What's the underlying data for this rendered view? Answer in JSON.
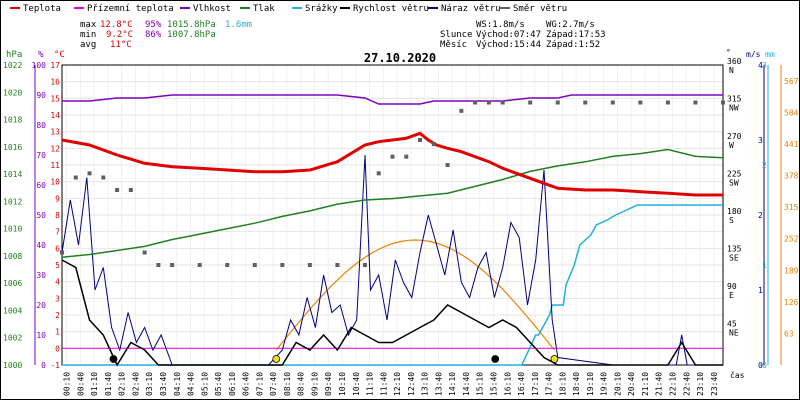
{
  "chart_data": {
    "type": "line",
    "title": "27.10.2020",
    "legend": [
      {
        "key": "teplota",
        "name": "Teplota",
        "color": "#e00000"
      },
      {
        "key": "prizemni",
        "name": "Přízemní teplota",
        "color": "#e000e0"
      },
      {
        "key": "vlhkost",
        "name": "Vlhkost",
        "color": "#8000c0"
      },
      {
        "key": "tlak",
        "name": "Tlak",
        "color": "#208020"
      },
      {
        "key": "srazky",
        "name": "Srážky",
        "color": "#20b0e0"
      },
      {
        "key": "rychlost",
        "name": "Rychlost větru",
        "color": "#000000"
      },
      {
        "key": "naraz",
        "name": "Náraz větru",
        "color": "#000080"
      },
      {
        "key": "smer",
        "name": "Směr větru",
        "color": "#606060"
      }
    ],
    "stats": {
      "max": {
        "label": "max",
        "temp": "12.8°C",
        "hum": "95%",
        "press": "1015.8hPa",
        "rain": "1.6mm"
      },
      "min": {
        "label": "min",
        "temp": "9.2°C",
        "hum": "86%",
        "press": "1007.8hPa"
      },
      "avg": {
        "label": "avg",
        "temp": "11°C"
      }
    },
    "info": {
      "ws": "WS:1.8m/s",
      "wg": "WG:2.7m/s",
      "sun_label": "Slunce",
      "sun_rise": "Východ:07:47",
      "sun_set": "Západ:17:53",
      "moon_label": "Měsíc",
      "moon_rise": "Východ:15:44",
      "moon_set": "Západ:1:52"
    },
    "axes": {
      "hpa": {
        "label": "hPa",
        "ticks": [
          "1000",
          "1002",
          "1004",
          "1006",
          "1008",
          "1010",
          "1012",
          "1014",
          "1016",
          "1018",
          "1020",
          "1022"
        ]
      },
      "pct": {
        "label": "%",
        "ticks": [
          "0",
          "10",
          "20",
          "30",
          "40",
          "50",
          "60",
          "70",
          "80",
          "90",
          "100"
        ]
      },
      "temp": {
        "label": "°C",
        "ticks": [
          "-1",
          "0",
          "1",
          "2",
          "3",
          "4",
          "5",
          "6",
          "7",
          "8",
          "9",
          "10",
          "11",
          "12",
          "13",
          "14",
          "15",
          "16",
          "17"
        ]
      },
      "dir": {
        "label": "°",
        "ticks": [
          {
            "v": "45",
            "c": "NE"
          },
          {
            "v": "90",
            "c": "E"
          },
          {
            "v": "135",
            "c": "SE"
          },
          {
            "v": "180",
            "c": "S"
          },
          {
            "v": "225",
            "c": "SW"
          },
          {
            "v": "270",
            "c": "W"
          },
          {
            "v": "315",
            "c": "NW"
          },
          {
            "v": "360",
            "c": "N"
          }
        ]
      },
      "ms": {
        "label": "m/s",
        "ticks": [
          "0",
          "1",
          "2",
          "3",
          "4"
        ]
      },
      "mm": {
        "label": "mm",
        "ticks": [
          "0",
          "1",
          "2",
          "3"
        ]
      },
      "rainmm": {
        "ticks": [
          "63",
          "126",
          "189",
          "252",
          "315",
          "378",
          "441",
          "504",
          "567"
        ]
      },
      "time_label": "čas",
      "x_ticks": [
        "00:10",
        "00:40",
        "01:10",
        "01:40",
        "02:10",
        "02:40",
        "03:10",
        "03:40",
        "04:10",
        "04:40",
        "05:10",
        "05:40",
        "06:10",
        "06:40",
        "07:10",
        "07:40",
        "08:10",
        "08:40",
        "09:10",
        "09:40",
        "10:10",
        "10:40",
        "11:10",
        "11:40",
        "12:10",
        "12:40",
        "13:10",
        "13:40",
        "14:10",
        "14:40",
        "15:10",
        "15:40",
        "16:10",
        "16:40",
        "17:10",
        "17:40",
        "18:10",
        "18:40",
        "19:10",
        "19:40",
        "20:10",
        "20:40",
        "21:10",
        "21:40",
        "22:10",
        "22:40",
        "23:10",
        "23:40"
      ]
    },
    "series": {
      "teplota": {
        "x": [
          0,
          1,
          2,
          3,
          4,
          5,
          6,
          7,
          8,
          9,
          10,
          11,
          11.5,
          12,
          12.5,
          13,
          13.3,
          13.6,
          14,
          14.5,
          15,
          15.5,
          16,
          16.5,
          17,
          17.5,
          18,
          19,
          20,
          21,
          22,
          23,
          24
        ],
        "y": [
          12.5,
          12.2,
          11.6,
          11.1,
          10.9,
          10.8,
          10.7,
          10.6,
          10.6,
          10.7,
          11.2,
          12.2,
          12.4,
          12.5,
          12.6,
          12.9,
          12.5,
          12.2,
          12,
          11.8,
          11.5,
          11.2,
          10.8,
          10.5,
          10.2,
          9.9,
          9.6,
          9.5,
          9.5,
          9.4,
          9.3,
          9.2,
          9.2
        ]
      },
      "prizemni": {
        "x": [
          0,
          24
        ],
        "y": [
          0,
          0
        ]
      },
      "vlhkost": {
        "x": [
          0,
          1,
          2,
          3,
          4,
          5,
          6,
          7,
          8,
          9,
          10,
          11,
          11.5,
          12,
          12.5,
          13,
          13.5,
          14,
          15,
          16,
          17,
          18,
          18.5,
          19,
          20,
          21,
          22,
          23,
          24
        ],
        "y": [
          88,
          88,
          89,
          89,
          90,
          90,
          90,
          90,
          90,
          90,
          90,
          89,
          87,
          87,
          87,
          87,
          88,
          88,
          88,
          88,
          89,
          89,
          90,
          90,
          90,
          90,
          90,
          90,
          90
        ]
      },
      "tlak": {
        "x": [
          0,
          1,
          2,
          3,
          4,
          5,
          6,
          7,
          8,
          9,
          10,
          11,
          12,
          13,
          14,
          15,
          16,
          17,
          18,
          19,
          20,
          21,
          22,
          23,
          24
        ],
        "y": [
          1007.9,
          1008.1,
          1008.4,
          1008.7,
          1009.2,
          1009.6,
          1010,
          1010.4,
          1010.9,
          1011.3,
          1011.8,
          1012.1,
          1012.2,
          1012.4,
          1012.6,
          1013.1,
          1013.6,
          1014.2,
          1014.6,
          1014.9,
          1015.3,
          1015.5,
          1015.8,
          1015.3,
          1015.2
        ]
      },
      "srazky": {
        "x": [
          0,
          16.7,
          17.2,
          17.3,
          17.7,
          17.8,
          18.2,
          18.3,
          18.6,
          18.8,
          19.2,
          19.4,
          19.8,
          20.1,
          20.5,
          20.9,
          21.2,
          24
        ],
        "y": [
          0,
          0,
          0.3,
          0.3,
          0.5,
          0.6,
          0.6,
          0.8,
          1,
          1.2,
          1.3,
          1.4,
          1.45,
          1.5,
          1.55,
          1.6,
          1.6,
          1.6
        ]
      },
      "rychlost": {
        "x": [
          0,
          0.5,
          1,
          1.5,
          2,
          2.5,
          3,
          3.5,
          4,
          6,
          8,
          8.5,
          9,
          9.5,
          10,
          10.5,
          11,
          11.5,
          12,
          12.5,
          13,
          13.5,
          14,
          14.5,
          15,
          15.5,
          16,
          16.5,
          17,
          17.5,
          18,
          20,
          22,
          22.5,
          23,
          24
        ],
        "y": [
          1.4,
          1.3,
          0.6,
          0.4,
          0,
          0.3,
          0.2,
          0,
          0,
          0,
          0,
          0.3,
          0.2,
          0.4,
          0.2,
          0.5,
          0.4,
          0.3,
          0.3,
          0.4,
          0.5,
          0.6,
          0.8,
          0.7,
          0.6,
          0.5,
          0.6,
          0.5,
          0.3,
          0.1,
          0,
          0,
          0,
          0.3,
          0,
          0
        ]
      },
      "naraz": {
        "x": [
          0,
          0.3,
          0.6,
          0.9,
          1.2,
          1.5,
          1.8,
          2.1,
          2.4,
          2.7,
          3,
          3.3,
          3.6,
          4,
          7.5,
          8,
          8.3,
          8.6,
          8.9,
          9.2,
          9.5,
          9.8,
          10.1,
          10.4,
          10.7,
          11,
          11.2,
          11.5,
          11.8,
          12.1,
          12.4,
          12.7,
          13,
          13.3,
          13.6,
          13.9,
          14.2,
          14.5,
          14.8,
          15.1,
          15.4,
          15.7,
          16,
          16.3,
          16.6,
          16.9,
          17.2,
          17.5,
          17.8,
          18,
          20,
          22.3,
          22.5,
          22.7,
          24
        ],
        "y": [
          1.5,
          2.2,
          1.6,
          2.5,
          1,
          1.3,
          0.5,
          0.2,
          0.7,
          0.3,
          0.5,
          0.2,
          0.4,
          0,
          0,
          0.2,
          0.6,
          0.4,
          0.9,
          0.5,
          1.2,
          0.7,
          0.8,
          0.4,
          0.6,
          2.8,
          1,
          1.2,
          0.6,
          1.4,
          1.1,
          0.9,
          1.5,
          2,
          1.6,
          1.2,
          1.8,
          1.1,
          0.9,
          1.3,
          1.5,
          0.9,
          1.3,
          1.9,
          1.7,
          0.8,
          1.4,
          2.6,
          0.6,
          0.1,
          0,
          0,
          0.4,
          0,
          0
        ]
      },
      "smer": {
        "x": [
          0,
          0.5,
          1,
          1.5,
          2,
          2.5,
          3,
          3.5,
          4,
          5,
          6,
          7,
          8,
          9,
          10,
          11,
          11.5,
          12,
          12.5,
          13,
          13.5,
          14,
          14.5,
          15,
          15.5,
          16,
          17,
          18,
          19,
          20,
          21,
          22,
          23,
          24
        ],
        "y": [
          135,
          225,
          230,
          225,
          210,
          210,
          135,
          120,
          120,
          120,
          120,
          120,
          120,
          120,
          120,
          120,
          230,
          250,
          250,
          270,
          265,
          240,
          305,
          315,
          315,
          315,
          315,
          315,
          315,
          315,
          315,
          315,
          315,
          315
        ]
      }
    },
    "markers": [
      {
        "name": "sunrise",
        "x": 7.78,
        "color": "#f0e020"
      },
      {
        "name": "sunset",
        "x": 17.88,
        "color": "#f0e020"
      },
      {
        "name": "moonrise",
        "x": 15.73,
        "color": "#000000"
      },
      {
        "name": "moonset",
        "x": 1.87,
        "color": "#000000"
      }
    ]
  }
}
